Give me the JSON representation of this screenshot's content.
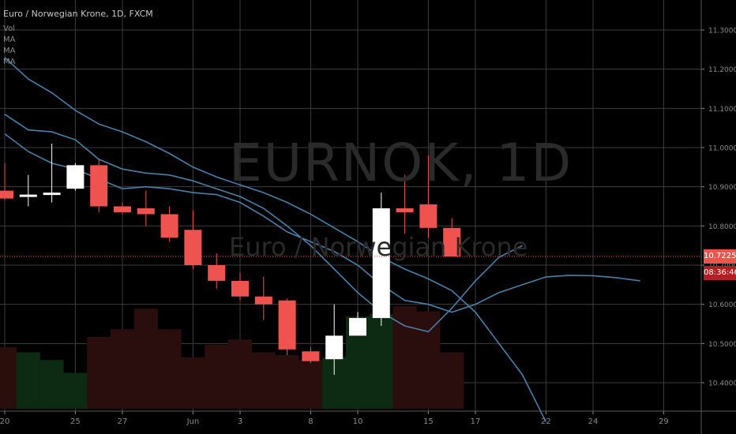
{
  "header": {
    "title": "Euro / Norwegian Krone, 1D, FXCM",
    "indicators": [
      "Vol",
      "MA",
      "MA",
      "MA"
    ]
  },
  "watermark": {
    "symbol": "EURNOK, 1D",
    "name": "Euro / Norwegian Krone"
  },
  "price_scale": {
    "last_price": "10.72250",
    "countdown": "08:36:46"
  },
  "colors": {
    "background": "#000000",
    "grid": "#3d3d3d",
    "up": "#ffffff",
    "down": "#ef5350",
    "ma_line": "#4a7fa6",
    "volume_up": "#0d2a13",
    "volume_down": "#2a0e0e",
    "last_price_line": "#ef5350",
    "countdown_bg": "#b02020"
  },
  "chart_data": {
    "type": "candlestick",
    "title": "Euro / Norwegian Krone, 1D, FXCM",
    "y_ticks": [
      "11.30000",
      "11.20000",
      "11.10000",
      "11.00000",
      "10.90000",
      "10.80000",
      "10.70000",
      "10.60000",
      "10.50000",
      "10.40000"
    ],
    "ylim": [
      10.35,
      11.37
    ],
    "x_ticks": [
      {
        "label": "20",
        "slot": 0
      },
      {
        "label": "25",
        "slot": 3
      },
      {
        "label": "27",
        "slot": 5
      },
      {
        "label": "Jun",
        "slot": 8
      },
      {
        "label": "3",
        "slot": 10
      },
      {
        "label": "8",
        "slot": 13
      },
      {
        "label": "10",
        "slot": 15
      },
      {
        "label": "15",
        "slot": 18
      },
      {
        "label": "17",
        "slot": 20
      },
      {
        "label": "22",
        "slot": 23
      },
      {
        "label": "24",
        "slot": 25
      },
      {
        "label": "29",
        "slot": 28
      }
    ],
    "grid": true,
    "candles": [
      {
        "slot": 0,
        "open": 10.89,
        "high": 10.96,
        "low": 10.865,
        "close": 10.87
      },
      {
        "slot": 1,
        "open": 10.875,
        "high": 10.93,
        "low": 10.85,
        "close": 10.88
      },
      {
        "slot": 2,
        "open": 10.88,
        "high": 11.01,
        "low": 10.86,
        "close": 10.885
      },
      {
        "slot": 3,
        "open": 10.895,
        "high": 10.96,
        "low": 10.89,
        "close": 10.955
      },
      {
        "slot": 4,
        "open": 10.955,
        "high": 10.97,
        "low": 10.835,
        "close": 10.85
      },
      {
        "slot": 5,
        "open": 10.85,
        "high": 10.86,
        "low": 10.83,
        "close": 10.835
      },
      {
        "slot": 6,
        "open": 10.845,
        "high": 10.89,
        "low": 10.8,
        "close": 10.83
      },
      {
        "slot": 7,
        "open": 10.83,
        "high": 10.85,
        "low": 10.76,
        "close": 10.77
      },
      {
        "slot": 8,
        "open": 10.79,
        "high": 10.84,
        "low": 10.69,
        "close": 10.7
      },
      {
        "slot": 9,
        "open": 10.7,
        "high": 10.73,
        "low": 10.64,
        "close": 10.66
      },
      {
        "slot": 10,
        "open": 10.66,
        "high": 10.68,
        "low": 10.61,
        "close": 10.62
      },
      {
        "slot": 11,
        "open": 10.62,
        "high": 10.67,
        "low": 10.56,
        "close": 10.6
      },
      {
        "slot": 12,
        "open": 10.61,
        "high": 10.615,
        "low": 10.47,
        "close": 10.485
      },
      {
        "slot": 13,
        "open": 10.48,
        "high": 10.49,
        "low": 10.45,
        "close": 10.455
      },
      {
        "slot": 14,
        "open": 10.46,
        "high": 10.6,
        "low": 10.42,
        "close": 10.52
      },
      {
        "slot": 15,
        "open": 10.52,
        "high": 10.58,
        "low": 10.52,
        "close": 10.565
      },
      {
        "slot": 16,
        "open": 10.565,
        "high": 10.885,
        "low": 10.545,
        "close": 10.845
      },
      {
        "slot": 17,
        "open": 10.845,
        "high": 10.93,
        "low": 10.78,
        "close": 10.835
      },
      {
        "slot": 18,
        "open": 10.855,
        "high": 10.98,
        "low": 10.77,
        "close": 10.795
      },
      {
        "slot": 19,
        "open": 10.795,
        "high": 10.82,
        "low": 10.722,
        "close": 10.722
      }
    ],
    "volume": [
      {
        "slot": 0,
        "value": 24,
        "dir": "down"
      },
      {
        "slot": 1,
        "value": 22,
        "dir": "up"
      },
      {
        "slot": 2,
        "value": 19,
        "dir": "up"
      },
      {
        "slot": 3,
        "value": 14,
        "dir": "up"
      },
      {
        "slot": 4,
        "value": 28,
        "dir": "down"
      },
      {
        "slot": 5,
        "value": 31,
        "dir": "down"
      },
      {
        "slot": 6,
        "value": 39,
        "dir": "down"
      },
      {
        "slot": 7,
        "value": 31,
        "dir": "down"
      },
      {
        "slot": 8,
        "value": 20,
        "dir": "down"
      },
      {
        "slot": 9,
        "value": 25,
        "dir": "down"
      },
      {
        "slot": 10,
        "value": 27,
        "dir": "down"
      },
      {
        "slot": 11,
        "value": 22,
        "dir": "down"
      },
      {
        "slot": 12,
        "value": 21,
        "dir": "down"
      },
      {
        "slot": 13,
        "value": 19,
        "dir": "down"
      },
      {
        "slot": 14,
        "value": 20,
        "dir": "up"
      },
      {
        "slot": 15,
        "value": 36,
        "dir": "up"
      },
      {
        "slot": 16,
        "value": 37,
        "dir": "up"
      },
      {
        "slot": 17,
        "value": 40,
        "dir": "down"
      },
      {
        "slot": 18,
        "value": 38,
        "dir": "down"
      },
      {
        "slot": 19,
        "value": 22,
        "dir": "down"
      }
    ],
    "moving_averages": [
      {
        "points": [
          [
            0,
            11.23
          ],
          [
            1,
            11.175
          ],
          [
            2,
            11.14
          ],
          [
            3,
            11.095
          ],
          [
            4,
            11.06
          ],
          [
            5,
            11.04
          ],
          [
            6,
            11.015
          ],
          [
            7,
            10.985
          ],
          [
            8,
            10.95
          ],
          [
            9,
            10.925
          ],
          [
            10,
            10.905
          ],
          [
            11,
            10.885
          ],
          [
            12,
            10.86
          ],
          [
            13,
            10.83
          ],
          [
            14,
            10.795
          ],
          [
            15,
            10.76
          ],
          [
            16,
            10.72
          ],
          [
            17,
            10.69
          ],
          [
            18,
            10.665
          ],
          [
            19,
            10.635
          ],
          [
            20,
            10.58
          ],
          [
            21,
            10.5
          ],
          [
            22,
            10.42
          ],
          [
            23,
            10.3
          ]
        ]
      },
      {
        "points": [
          [
            0,
            11.085
          ],
          [
            1,
            11.045
          ],
          [
            2,
            11.04
          ],
          [
            3,
            11.02
          ],
          [
            4,
            10.97
          ],
          [
            5,
            10.945
          ],
          [
            6,
            10.935
          ],
          [
            7,
            10.93
          ],
          [
            8,
            10.915
          ],
          [
            9,
            10.895
          ],
          [
            10,
            10.875
          ],
          [
            11,
            10.845
          ],
          [
            12,
            10.8
          ],
          [
            13,
            10.75
          ],
          [
            14,
            10.69
          ],
          [
            15,
            10.63
          ],
          [
            16,
            10.58
          ],
          [
            17,
            10.545
          ],
          [
            18,
            10.53
          ],
          [
            19,
            10.59
          ],
          [
            20,
            10.66
          ],
          [
            21,
            10.72
          ],
          [
            22,
            10.75
          ]
        ]
      },
      {
        "points": [
          [
            0,
            11.035
          ],
          [
            1,
            10.99
          ],
          [
            2,
            10.96
          ],
          [
            3,
            10.945
          ],
          [
            4,
            10.92
          ],
          [
            5,
            10.895
          ],
          [
            6,
            10.9
          ],
          [
            7,
            10.895
          ],
          [
            8,
            10.885
          ],
          [
            9,
            10.88
          ],
          [
            10,
            10.86
          ],
          [
            11,
            10.825
          ],
          [
            12,
            10.785
          ],
          [
            13,
            10.76
          ],
          [
            14,
            10.735
          ],
          [
            15,
            10.7
          ],
          [
            16,
            10.65
          ],
          [
            17,
            10.61
          ],
          [
            18,
            10.6
          ],
          [
            19,
            10.58
          ],
          [
            20,
            10.6
          ],
          [
            21,
            10.63
          ],
          [
            22,
            10.65
          ],
          [
            23,
            10.67
          ],
          [
            24,
            10.674
          ],
          [
            25,
            10.673
          ],
          [
            26,
            10.668
          ],
          [
            27,
            10.66
          ]
        ]
      }
    ],
    "last_price": 10.7225
  }
}
